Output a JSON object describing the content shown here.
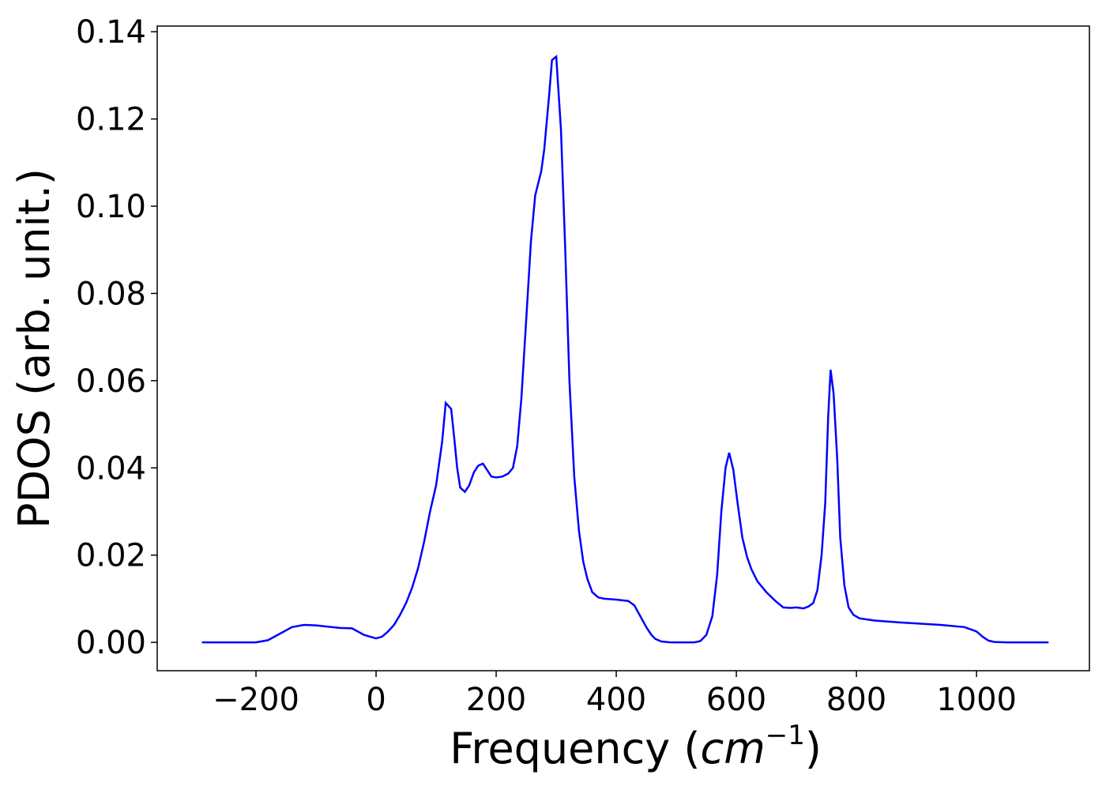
{
  "chart_data": {
    "type": "line",
    "xlabel": {
      "prefix": "Frequency (",
      "unit": "cm",
      "exponent": "−1",
      "suffix": ")"
    },
    "ylabel": "PDOS (arb. unit.)",
    "xlim": [
      -364.5,
      1188
    ],
    "ylim": [
      -0.0065,
      0.1413
    ],
    "xticks": [
      {
        "value": -200,
        "label": "−200"
      },
      0,
      200,
      400,
      600,
      800,
      1000
    ],
    "yticks": [
      {
        "value": 0,
        "label": "0.00"
      },
      {
        "value": 0.02,
        "label": "0.02"
      },
      {
        "value": 0.04,
        "label": "0.04"
      },
      {
        "value": 0.06,
        "label": "0.06"
      },
      {
        "value": 0.08,
        "label": "0.08"
      },
      {
        "value": 0.1,
        "label": "0.10"
      },
      {
        "value": 0.12,
        "label": "0.12"
      },
      {
        "value": 0.14,
        "label": "0.14"
      }
    ],
    "series": [
      {
        "color": "#0000ff",
        "x": [
          -290,
          -200,
          -180,
          -160,
          -140,
          -120,
          -100,
          -80,
          -60,
          -40,
          -20,
          0,
          10,
          20,
          30,
          40,
          50,
          60,
          70,
          80,
          90,
          100,
          110,
          116,
          125,
          130,
          135,
          140,
          148,
          155,
          163,
          170,
          178,
          185,
          192,
          200,
          210,
          220,
          228,
          235,
          242,
          250,
          258,
          265,
          275,
          280,
          288,
          293,
          300,
          308,
          315,
          322,
          330,
          338,
          345,
          352,
          360,
          370,
          380,
          400,
          420,
          430,
          440,
          450,
          458,
          465,
          475,
          490,
          530,
          540,
          550,
          560,
          568,
          575,
          582,
          588,
          595,
          602,
          610,
          618,
          625,
          635,
          650,
          665,
          678,
          690,
          700,
          712,
          720,
          728,
          735,
          742,
          748,
          753,
          757,
          762,
          768,
          773,
          780,
          787,
          795,
          805,
          830,
          880,
          940,
          980,
          1000,
          1010,
          1020,
          1030,
          1050,
          1120
        ],
        "values": [
          0,
          0,
          0.0005,
          0.002,
          0.0035,
          0.004,
          0.0039,
          0.0036,
          0.0033,
          0.0032,
          0.0017,
          0.0009,
          0.0013,
          0.0025,
          0.004,
          0.0063,
          0.009,
          0.0125,
          0.017,
          0.023,
          0.03,
          0.036,
          0.046,
          0.0549,
          0.0535,
          0.047,
          0.04,
          0.0355,
          0.0345,
          0.036,
          0.039,
          0.0405,
          0.041,
          0.0395,
          0.038,
          0.0378,
          0.038,
          0.0387,
          0.04,
          0.045,
          0.056,
          0.074,
          0.092,
          0.1025,
          0.108,
          0.113,
          0.125,
          0.1335,
          0.1343,
          0.1175,
          0.09,
          0.06,
          0.038,
          0.0255,
          0.0185,
          0.0145,
          0.0115,
          0.0103,
          0.01,
          0.0098,
          0.0095,
          0.0085,
          0.006,
          0.0035,
          0.0018,
          0.0008,
          0.0002,
          0,
          0,
          0.0003,
          0.0017,
          0.006,
          0.0155,
          0.03,
          0.04,
          0.0435,
          0.0395,
          0.032,
          0.024,
          0.0195,
          0.0168,
          0.014,
          0.0115,
          0.0095,
          0.008,
          0.0079,
          0.008,
          0.0078,
          0.0082,
          0.009,
          0.012,
          0.02,
          0.032,
          0.052,
          0.0625,
          0.057,
          0.042,
          0.024,
          0.013,
          0.008,
          0.0063,
          0.0055,
          0.005,
          0.0045,
          0.004,
          0.0035,
          0.0025,
          0.0013,
          0.0004,
          0.0001,
          0,
          0
        ]
      }
    ]
  }
}
